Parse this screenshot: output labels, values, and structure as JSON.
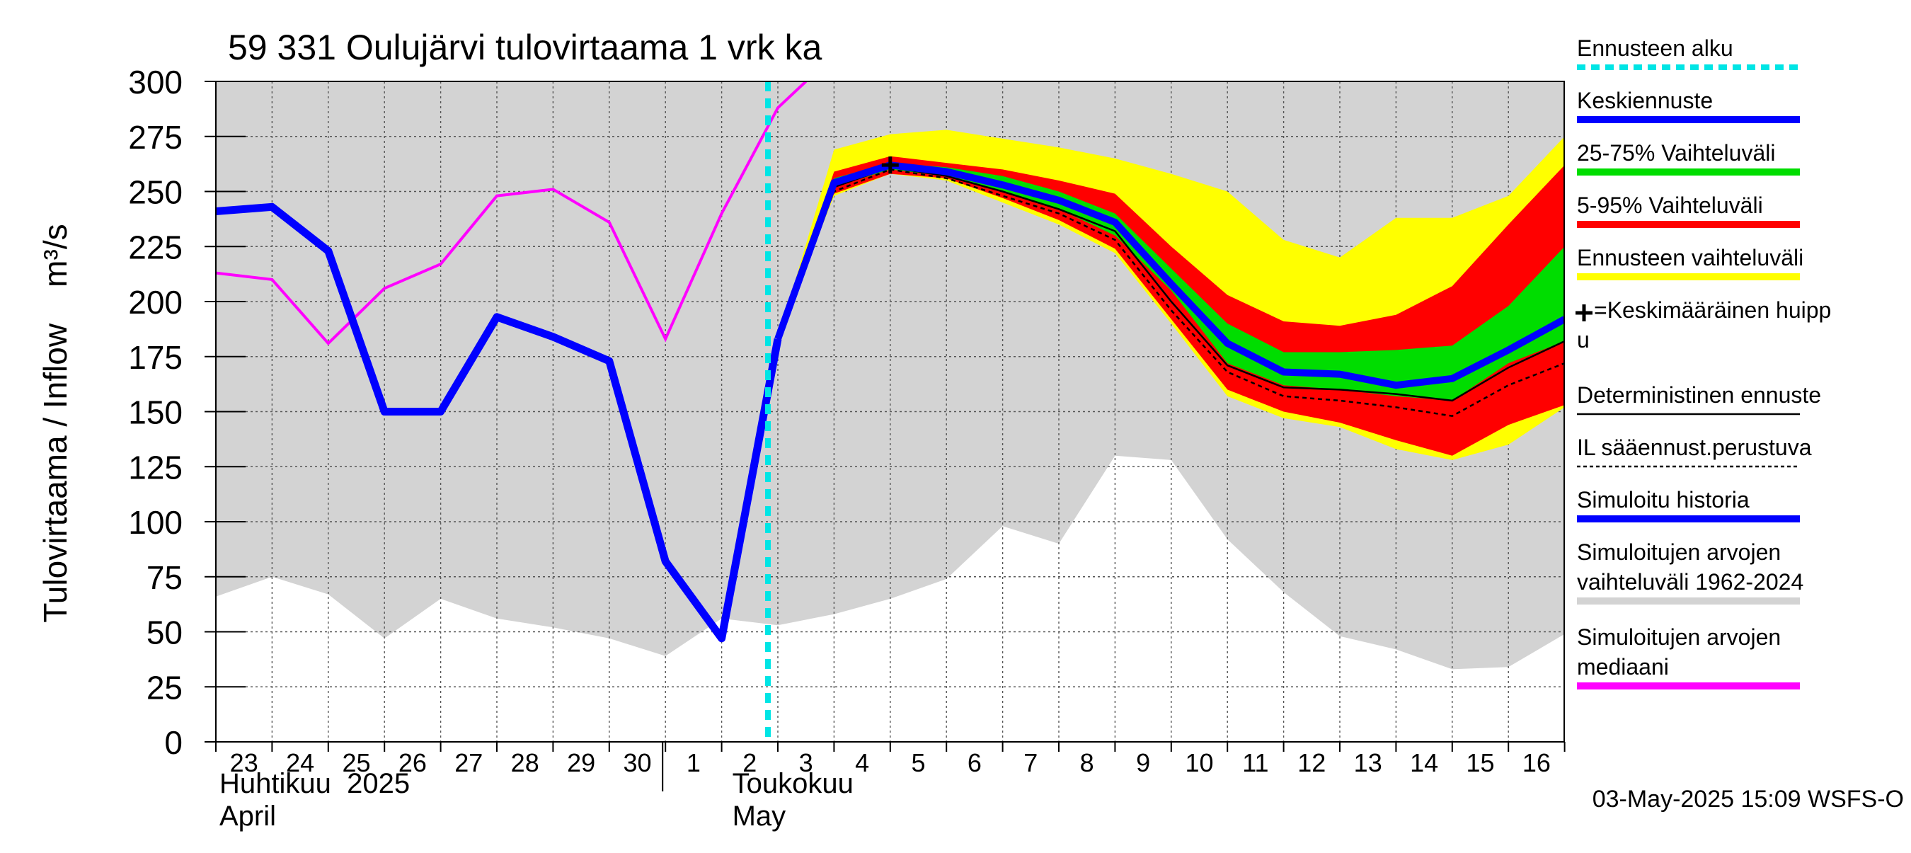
{
  "chart_data": {
    "type": "area",
    "title": "59 331 Oulujärvi tulovirtaama 1 vrk ka",
    "ylabel": "Tulovirtaama / Inflow    m³/s",
    "ylim": [
      0,
      300
    ],
    "yticks": [
      0,
      25,
      50,
      75,
      100,
      125,
      150,
      175,
      200,
      225,
      250,
      275,
      300
    ],
    "grid": true,
    "legend_position": "right",
    "x_tick_labels": [
      "23",
      "24",
      "25",
      "26",
      "27",
      "28",
      "29",
      "30",
      "1",
      "2",
      "3",
      "4",
      "5",
      "6",
      "7",
      "8",
      "9",
      "10",
      "11",
      "12",
      "13",
      "14",
      "15",
      "16"
    ],
    "month_labels": [
      {
        "fi": "Huhtikuu  2025",
        "en": "April"
      },
      {
        "fi": "Toukokuu",
        "en": "May"
      }
    ],
    "x": [
      "2025-04-23",
      "2025-04-24",
      "2025-04-25",
      "2025-04-26",
      "2025-04-27",
      "2025-04-28",
      "2025-04-29",
      "2025-04-30",
      "2025-05-01",
      "2025-05-02",
      "2025-05-03",
      "2025-05-04",
      "2025-05-05",
      "2025-05-06",
      "2025-05-07",
      "2025-05-08",
      "2025-05-09",
      "2025-05-10",
      "2025-05-11",
      "2025-05-12",
      "2025-05-13",
      "2025-05-14",
      "2025-05-15",
      "2025-05-16",
      "2025-05-17"
    ],
    "forecast_start": "2025-05-03",
    "historical_range": {
      "min": [
        66,
        75,
        67,
        47,
        65,
        56,
        52,
        47,
        39,
        56,
        53,
        58,
        65,
        74,
        98,
        90,
        130,
        128,
        92,
        68,
        48,
        42,
        33,
        34,
        49
      ],
      "max": [
        300,
        300,
        300,
        300,
        300,
        300,
        300,
        300,
        300,
        300,
        300,
        300,
        300,
        300,
        300,
        300,
        300,
        300,
        300,
        300,
        300,
        300,
        300,
        300,
        300
      ]
    },
    "median": {
      "x": [
        "2025-04-23",
        "2025-04-24",
        "2025-04-25",
        "2025-04-26",
        "2025-04-27",
        "2025-04-28",
        "2025-04-29",
        "2025-04-30",
        "2025-05-01",
        "2025-05-02",
        "2025-05-03",
        "2025-05-03T12:00"
      ],
      "values": [
        213,
        210,
        181,
        206,
        217,
        248,
        251,
        236,
        183,
        240,
        288,
        300
      ]
    },
    "simulated_history": {
      "x": [
        "2025-04-23",
        "2025-04-24",
        "2025-04-25",
        "2025-04-26",
        "2025-04-27",
        "2025-04-28",
        "2025-04-29",
        "2025-04-30",
        "2025-05-01",
        "2025-05-02",
        "2025-05-03"
      ],
      "values": [
        241,
        243,
        223,
        150,
        150,
        193,
        184,
        173,
        82,
        47,
        183
      ]
    },
    "forecast_x": [
      "2025-05-03",
      "2025-05-04",
      "2025-05-05",
      "2025-05-06",
      "2025-05-07",
      "2025-05-08",
      "2025-05-09",
      "2025-05-10",
      "2025-05-11",
      "2025-05-12",
      "2025-05-13",
      "2025-05-14",
      "2025-05-15",
      "2025-05-16",
      "2025-05-17"
    ],
    "forecast_range": {
      "min": [
        183,
        248,
        258,
        255,
        245,
        235,
        222,
        190,
        157,
        147,
        143,
        133,
        128,
        135,
        152
      ],
      "max": [
        183,
        269,
        276,
        278,
        274,
        270,
        265,
        258,
        250,
        228,
        220,
        238,
        238,
        248,
        275
      ]
    },
    "band_5_95": {
      "low": [
        183,
        249,
        258,
        256,
        247,
        237,
        224,
        192,
        160,
        150,
        145,
        137,
        130,
        144,
        153
      ],
      "high": [
        183,
        259,
        266,
        263,
        260,
        255,
        249,
        225,
        203,
        191,
        189,
        194,
        207,
        235,
        262
      ]
    },
    "band_25_75": {
      "low": [
        183,
        252,
        260,
        257,
        250,
        242,
        230,
        205,
        172,
        162,
        160,
        157,
        155,
        172,
        182
      ],
      "high": [
        183,
        256,
        263,
        261,
        257,
        250,
        240,
        215,
        190,
        177,
        177,
        178,
        180,
        198,
        225
      ]
    },
    "mean_forecast": [
      183,
      254,
      262,
      259,
      253,
      246,
      236,
      208,
      181,
      168,
      167,
      162,
      165,
      178,
      192
    ],
    "deterministic": [
      183,
      252,
      261,
      257,
      250,
      242,
      232,
      200,
      171,
      161,
      160,
      158,
      155,
      170,
      182
    ],
    "il_weather_based": [
      183,
      250,
      260,
      256,
      248,
      240,
      228,
      196,
      168,
      157,
      155,
      152,
      148,
      162,
      172
    ],
    "mean_peak": {
      "x": "2025-05-05",
      "value": 262
    },
    "colors": {
      "forecast_start": "#00e5e5",
      "mean_forecast": "#0000ff",
      "band_25_75": "#00dd00",
      "band_5_95": "#ff0000",
      "forecast_range": "#ffff00",
      "simulated_history": "#0000ff",
      "historical_range": "#d3d3d3",
      "median": "#ff00ff"
    }
  },
  "legend": [
    {
      "label": "Ennusteen alku",
      "type": "dashed",
      "color": "#00e5e5"
    },
    {
      "label": "Keskiennuste",
      "type": "line",
      "color": "#0000ff"
    },
    {
      "label": "25-75% Vaihteluväli",
      "type": "line",
      "color": "#00dd00"
    },
    {
      "label": "5-95% Vaihteluväli",
      "type": "line",
      "color": "#ff0000"
    },
    {
      "label": "Ennusteen vaihteluväli",
      "type": "line",
      "color": "#ffff00"
    },
    {
      "label": "=Keskimääräinen huipp",
      "label2": "u",
      "type": "marker",
      "color": "#000000"
    },
    {
      "label": "Deterministinen ennuste",
      "type": "thinline",
      "color": "#000000"
    },
    {
      "label": "IL sääennust.perustuva",
      "type": "dotted",
      "color": "#000000"
    },
    {
      "label": "Simuloitu historia",
      "type": "line",
      "color": "#0000ff"
    },
    {
      "label": "Simuloitujen arvojen",
      "label2": "vaihteluväli 1962-2024",
      "type": "line",
      "color": "#d3d3d3"
    },
    {
      "label": "Simuloitujen arvojen",
      "label2": "mediaani",
      "type": "line",
      "color": "#ff00ff"
    }
  ],
  "footer": "03-May-2025 15:09 WSFS-O"
}
